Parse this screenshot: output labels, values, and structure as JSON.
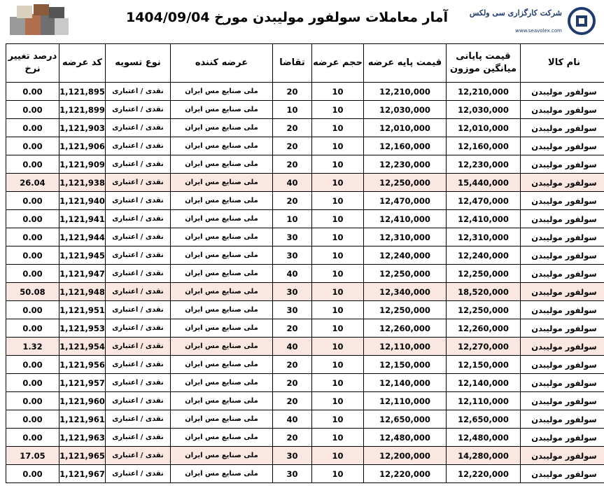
{
  "header": {
    "title": "آمار معاملات سولفور مولیبدن مورخ 1404/09/04",
    "logo_name": "شرکت کارگزاری سی ولکس",
    "logo_url": "www.seavolex.com"
  },
  "table": {
    "columns": [
      "نام کالا",
      "قیمت پایانی میانگین موزون",
      "قیمت پایه عرضه",
      "حجم عرضه",
      "تقاضا",
      "عرضه کننده",
      "نوع تسویه",
      "کد عرضه",
      "درصد تغییر نرخ"
    ],
    "highlighted_rows": [
      5,
      11,
      14,
      20
    ],
    "rows": [
      [
        "سولفور مولیبدن",
        "12,210,000",
        "12,210,000",
        "10",
        "20",
        "ملی صنایع مس ایران",
        "نقدی / اعتباری",
        "1,121,895",
        "0.00"
      ],
      [
        "سولفور مولیبدن",
        "12,030,000",
        "12,030,000",
        "10",
        "10",
        "ملی صنایع مس ایران",
        "نقدی / اعتباری",
        "1,121,899",
        "0.00"
      ],
      [
        "سولفور مولیبدن",
        "12,010,000",
        "12,010,000",
        "10",
        "20",
        "ملی صنایع مس ایران",
        "نقدی / اعتباری",
        "1,121,903",
        "0.00"
      ],
      [
        "سولفور مولیبدن",
        "12,160,000",
        "12,160,000",
        "10",
        "20",
        "ملی صنایع مس ایران",
        "نقدی / اعتباری",
        "1,121,906",
        "0.00"
      ],
      [
        "سولفور مولیبدن",
        "12,230,000",
        "12,230,000",
        "10",
        "20",
        "ملی صنایع مس ایران",
        "نقدی / اعتباری",
        "1,121,909",
        "0.00"
      ],
      [
        "سولفور مولیبدن",
        "15,440,000",
        "12,250,000",
        "10",
        "40",
        "ملی صنایع مس ایران",
        "نقدی / اعتباری",
        "1,121,938",
        "26.04"
      ],
      [
        "سولفور مولیبدن",
        "12,470,000",
        "12,470,000",
        "10",
        "20",
        "ملی صنایع مس ایران",
        "نقدی / اعتباری",
        "1,121,940",
        "0.00"
      ],
      [
        "سولفور مولیبدن",
        "12,410,000",
        "12,410,000",
        "10",
        "10",
        "ملی صنایع مس ایران",
        "نقدی / اعتباری",
        "1,121,941",
        "0.00"
      ],
      [
        "سولفور مولیبدن",
        "12,310,000",
        "12,310,000",
        "10",
        "30",
        "ملی صنایع مس ایران",
        "نقدی / اعتباری",
        "1,121,944",
        "0.00"
      ],
      [
        "سولفور مولیبدن",
        "12,240,000",
        "12,240,000",
        "10",
        "30",
        "ملی صنایع مس ایران",
        "نقدی / اعتباری",
        "1,121,945",
        "0.00"
      ],
      [
        "سولفور مولیبدن",
        "12,250,000",
        "12,250,000",
        "10",
        "40",
        "ملی صنایع مس ایران",
        "نقدی / اعتباری",
        "1,121,947",
        "0.00"
      ],
      [
        "سولفور مولیبدن",
        "18,520,000",
        "12,340,000",
        "10",
        "30",
        "ملی صنایع مس ایران",
        "نقدی / اعتباری",
        "1,121,948",
        "50.08"
      ],
      [
        "سولفور مولیبدن",
        "12,250,000",
        "12,250,000",
        "10",
        "30",
        "ملی صنایع مس ایران",
        "نقدی / اعتباری",
        "1,121,951",
        "0.00"
      ],
      [
        "سولفور مولیبدن",
        "12,260,000",
        "12,260,000",
        "10",
        "20",
        "ملی صنایع مس ایران",
        "نقدی / اعتباری",
        "1,121,953",
        "0.00"
      ],
      [
        "سولفور مولیبدن",
        "12,270,000",
        "12,110,000",
        "10",
        "40",
        "ملی صنایع مس ایران",
        "نقدی / اعتباری",
        "1,121,954",
        "1.32"
      ],
      [
        "سولفور مولیبدن",
        "12,150,000",
        "12,150,000",
        "10",
        "20",
        "ملی صنایع مس ایران",
        "نقدی / اعتباری",
        "1,121,956",
        "0.00"
      ],
      [
        "سولفور مولیبدن",
        "12,140,000",
        "12,140,000",
        "10",
        "20",
        "ملی صنایع مس ایران",
        "نقدی / اعتباری",
        "1,121,957",
        "0.00"
      ],
      [
        "سولفور مولیبدن",
        "12,110,000",
        "12,110,000",
        "10",
        "20",
        "ملی صنایع مس ایران",
        "نقدی / اعتباری",
        "1,121,960",
        "0.00"
      ],
      [
        "سولفور مولیبدن",
        "12,650,000",
        "12,650,000",
        "10",
        "40",
        "ملی صنایع مس ایران",
        "نقدی / اعتباری",
        "1,121,961",
        "0.00"
      ],
      [
        "سولفور مولیبدن",
        "12,480,000",
        "12,480,000",
        "10",
        "20",
        "ملی صنایع مس ایران",
        "نقدی / اعتباری",
        "1,121,963",
        "0.00"
      ],
      [
        "سولفور مولیبدن",
        "14,280,000",
        "12,200,000",
        "10",
        "30",
        "ملی صنایع مس ایران",
        "نقدی / اعتباری",
        "1,121,965",
        "17.05"
      ],
      [
        "سولفور مولیبدن",
        "12,220,000",
        "12,220,000",
        "10",
        "30",
        "ملی صنایع مس ایران",
        "نقدی / اعتباری",
        "1,121,967",
        "0.00"
      ]
    ]
  }
}
